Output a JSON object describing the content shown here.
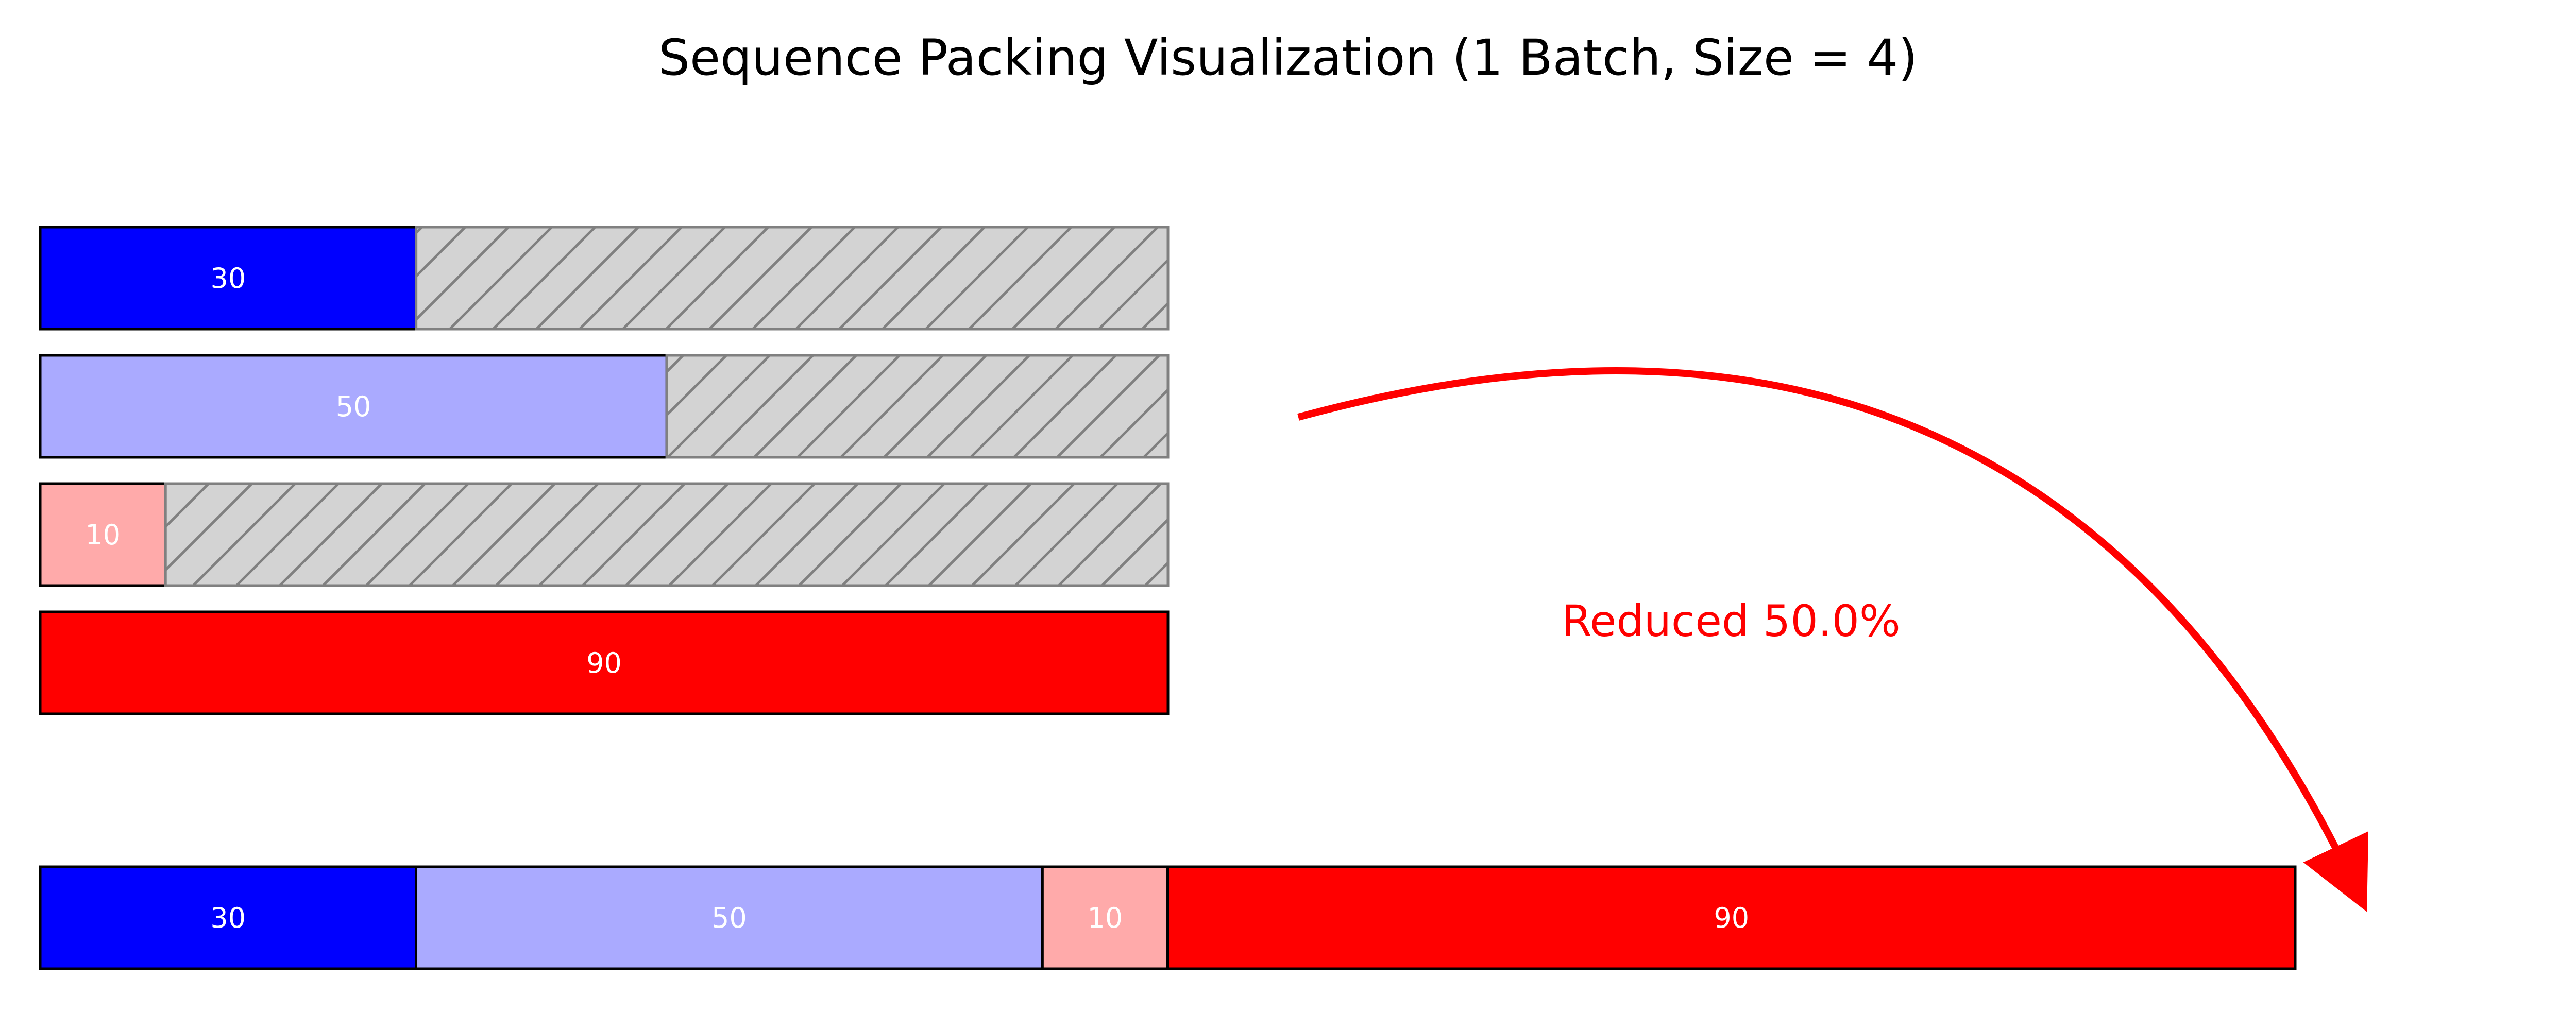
{
  "title": "Sequence Packing Visualization (1 Batch, Size = 4)",
  "max_length": 90,
  "unpadded_rows": [
    {
      "value": 30,
      "label": "30",
      "color": "#0000ff"
    },
    {
      "value": 50,
      "label": "50",
      "color": "#aaaaff"
    },
    {
      "value": 10,
      "label": "10",
      "color": "#ffaaaa"
    },
    {
      "value": 90,
      "label": "90",
      "color": "#ff0000"
    }
  ],
  "packed_row": [
    {
      "value": 30,
      "label": "30",
      "color": "#0000ff"
    },
    {
      "value": 50,
      "label": "50",
      "color": "#aaaaff"
    },
    {
      "value": 10,
      "label": "10",
      "color": "#ffaaaa"
    },
    {
      "value": 90,
      "label": "90",
      "color": "#ff0000"
    }
  ],
  "padding_color": "#d3d3d3",
  "padding_hatch_color": "#808080",
  "annotation": {
    "text": "Reduced 50.0%",
    "color": "#ff0000"
  }
}
